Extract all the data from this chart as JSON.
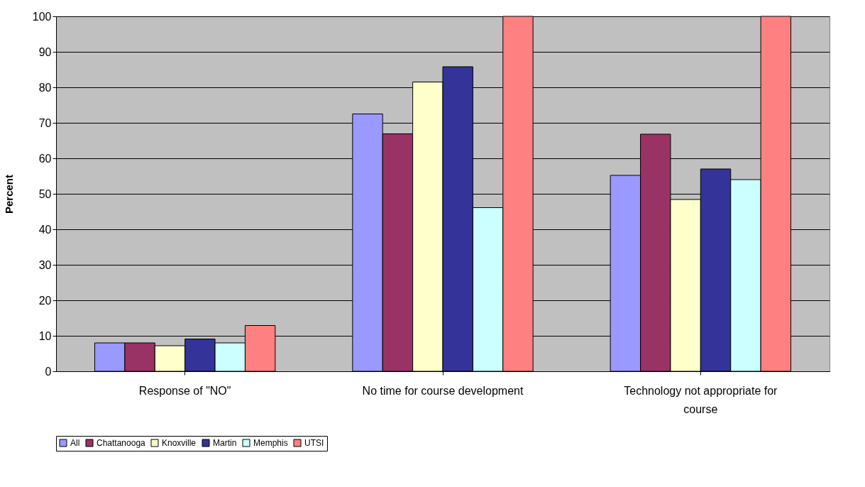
{
  "chart_data": {
    "type": "bar",
    "ylabel": "Percent",
    "categories": [
      "Response of \"NO\"",
      "No time for course development",
      "Technology not appropriate for course"
    ],
    "series": [
      {
        "name": "All",
        "color": "#9999ff",
        "values": [
          8,
          72.5,
          55.2
        ]
      },
      {
        "name": "Chattanooga",
        "color": "#993366",
        "values": [
          8,
          66.9,
          66.8
        ]
      },
      {
        "name": "Knoxville",
        "color": "#ffffcc",
        "values": [
          7.2,
          81.5,
          48.4
        ]
      },
      {
        "name": "Martin",
        "color": "#333399",
        "values": [
          9.1,
          85.8,
          57
        ]
      },
      {
        "name": "Memphis",
        "color": "#ccffff",
        "values": [
          8,
          46.1,
          54
        ]
      },
      {
        "name": "UTSI",
        "color": "#ff8080",
        "values": [
          12.9,
          100,
          100
        ]
      }
    ],
    "ylim": [
      0,
      100
    ],
    "yticks": [
      0,
      10,
      20,
      30,
      40,
      50,
      60,
      70,
      80,
      90,
      100
    ],
    "grid": "y",
    "legend": "bottom"
  }
}
